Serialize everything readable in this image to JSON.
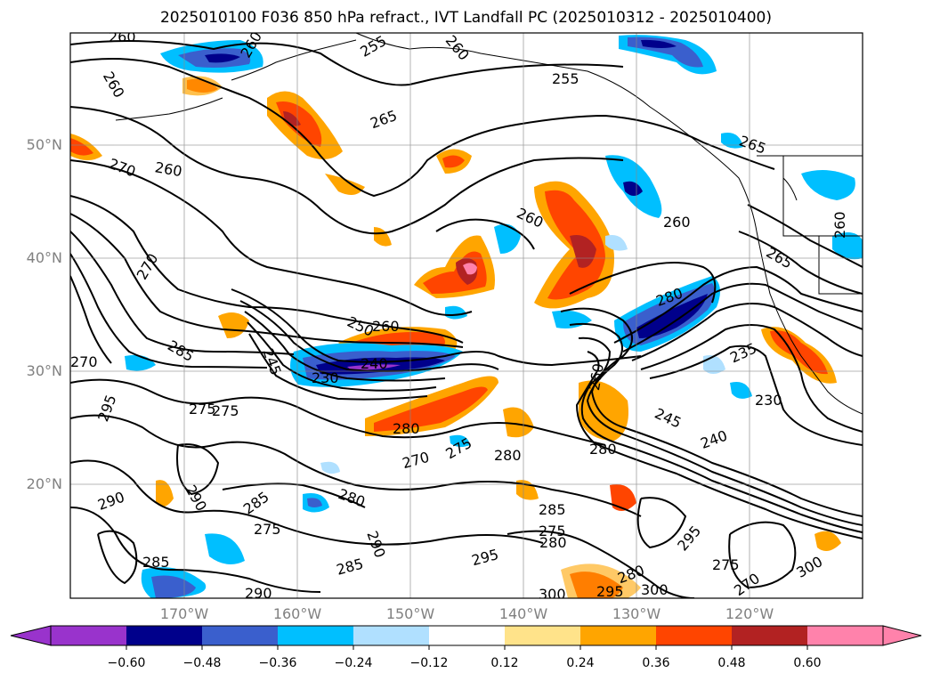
{
  "title": "2025010100 F036 850 hPa refract., IVT Landfall PC (2025010312 - 2025010400)",
  "lat_labels": [
    "50°N",
    "40°N",
    "30°N",
    "20°N"
  ],
  "lon_labels": [
    "170°W",
    "160°W",
    "150°W",
    "140°W",
    "130°W",
    "120°W"
  ],
  "colorbar": {
    "ticks": [
      "−0.60",
      "−0.48",
      "−0.36",
      "−0.24",
      "−0.12",
      "0.12",
      "0.24",
      "0.36",
      "0.48",
      "0.60"
    ],
    "colors": [
      "#9933cc",
      "#00008b",
      "#3a5fcd",
      "#00bfff",
      "#b0e0ff",
      "#ffffff",
      "#ffe38a",
      "#ffa500",
      "#ff4500",
      "#b22222",
      "#ff82ab"
    ]
  },
  "contour_labels": [
    "260",
    "260",
    "260",
    "270",
    "260",
    "265",
    "255",
    "265",
    "260",
    "260",
    "265",
    "270",
    "250",
    "260",
    "245",
    "240",
    "230",
    "270",
    "285",
    "275",
    "275",
    "280",
    "270",
    "275",
    "280",
    "260",
    "280",
    "245",
    "240",
    "235",
    "230",
    "295",
    "290",
    "285",
    "290",
    "275",
    "285",
    "280",
    "290",
    "285",
    "295",
    "300",
    "290",
    "280",
    "295",
    "275",
    "270",
    "300",
    "300",
    "295",
    "280",
    "280",
    "285",
    "275",
    "260",
    "255",
    "260"
  ]
}
